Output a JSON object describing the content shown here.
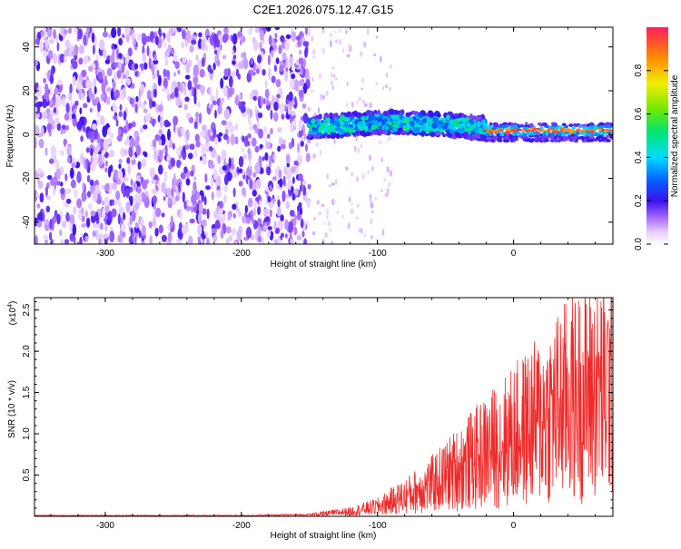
{
  "title": "C2E1.2026.075.12.47.G15",
  "chart_data": [
    {
      "type": "heatmap",
      "xlabel": "Height of straight line (km)",
      "ylabel": "Frequency (Hz)",
      "xlim": [
        -352,
        73
      ],
      "ylim": [
        -50,
        49
      ],
      "x_ticks": [
        -300,
        -200,
        -100,
        0
      ],
      "y_ticks": [
        -40,
        -20,
        0,
        20,
        40
      ],
      "colorbar": {
        "label": "Normalized spectral amplitude",
        "range": [
          0,
          1
        ],
        "ticks": [
          "0.0",
          "0.2",
          "0.4",
          "0.6",
          "0.8"
        ],
        "tick_values": [
          0.0,
          0.2,
          0.4,
          0.6,
          0.8
        ]
      },
      "regions": [
        {
          "x_range": [
            -352,
            -150
          ],
          "freq_range": [
            -50,
            49
          ],
          "amplitude": "low (0.0-0.15), broadband noise"
        },
        {
          "x_range": [
            -150,
            -20
          ],
          "freq_range": [
            -3,
            9
          ],
          "amplitude": "0.2-0.5 band centred near 2-5 Hz"
        },
        {
          "x_range": [
            -20,
            73
          ],
          "freq_range": [
            0,
            3
          ],
          "amplitude": "0.8-1.0 narrow tone near 2 Hz"
        }
      ]
    },
    {
      "type": "line",
      "xlabel": "Height of straight line (km)",
      "ylabel": "SNR (10 * v/v)",
      "scale_label": "(x10^4)",
      "xlim": [
        -352,
        73
      ],
      "ylim": [
        0,
        2.65
      ],
      "x_ticks": [
        -300,
        -200,
        -100,
        0
      ],
      "y_ticks": [
        0.5,
        1.0,
        1.5,
        2.0,
        2.5
      ],
      "series": [
        {
          "color": "#ee2a2a",
          "envelope": [
            {
              "x": -352,
              "y": 0.01
            },
            {
              "x": -200,
              "y": 0.01
            },
            {
              "x": -150,
              "y": 0.02
            },
            {
              "x": -120,
              "y": 0.06
            },
            {
              "x": -100,
              "y": 0.12
            },
            {
              "x": -80,
              "y": 0.25
            },
            {
              "x": -60,
              "y": 0.4
            },
            {
              "x": -40,
              "y": 0.6
            },
            {
              "x": -20,
              "y": 0.8
            },
            {
              "x": 0,
              "y": 1.0
            },
            {
              "x": 20,
              "y": 1.2
            },
            {
              "x": 40,
              "y": 1.45
            },
            {
              "x": 60,
              "y": 1.55
            },
            {
              "x": 73,
              "y": 1.6
            }
          ]
        }
      ]
    }
  ]
}
